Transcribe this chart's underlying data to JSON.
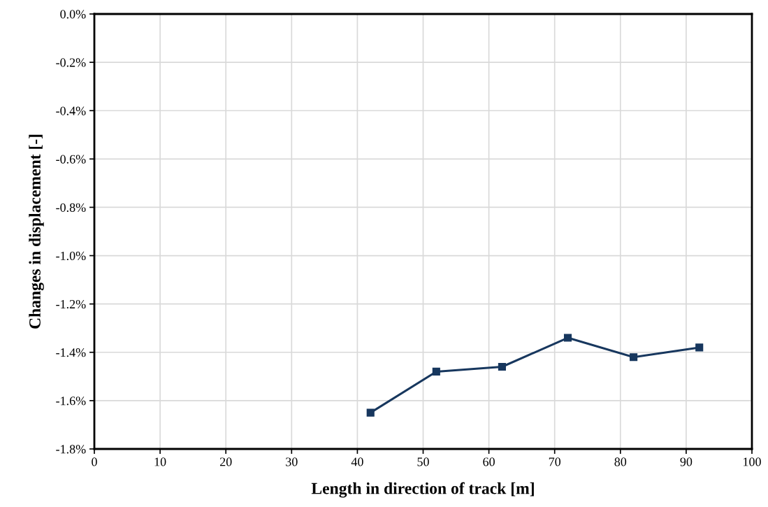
{
  "chart_data": {
    "type": "line",
    "xlabel": "Length in direction of track [m]",
    "ylabel": "Changes in displacement [-]",
    "x": [
      42,
      52,
      62,
      72,
      82,
      92
    ],
    "series": [
      {
        "color": "#17375e",
        "values": [
          -1.65,
          -1.48,
          -1.46,
          -1.34,
          -1.42,
          -1.38
        ]
      }
    ],
    "xlim": [
      0,
      100
    ],
    "xticks": [
      0,
      10,
      20,
      30,
      40,
      50,
      60,
      70,
      80,
      90,
      100
    ],
    "ylim": [
      -1.8,
      0
    ],
    "yticks": [
      {
        "value": -1.8,
        "label": "-1.8%"
      },
      {
        "value": -1.6,
        "label": "-1.6%"
      },
      {
        "value": -1.4,
        "label": "-1.4%"
      },
      {
        "value": -1.2,
        "label": "-1.2%"
      },
      {
        "value": -1.0,
        "label": "-1.0%"
      },
      {
        "value": -0.8,
        "label": "-0.8%"
      },
      {
        "value": -0.6,
        "label": "-0.6%"
      },
      {
        "value": -0.4,
        "label": "-0.4%"
      },
      {
        "value": -0.2,
        "label": "-0.2%"
      },
      {
        "value": 0,
        "label": "0.0%"
      }
    ],
    "grid": true,
    "marker": "square",
    "line_style": "solid"
  }
}
